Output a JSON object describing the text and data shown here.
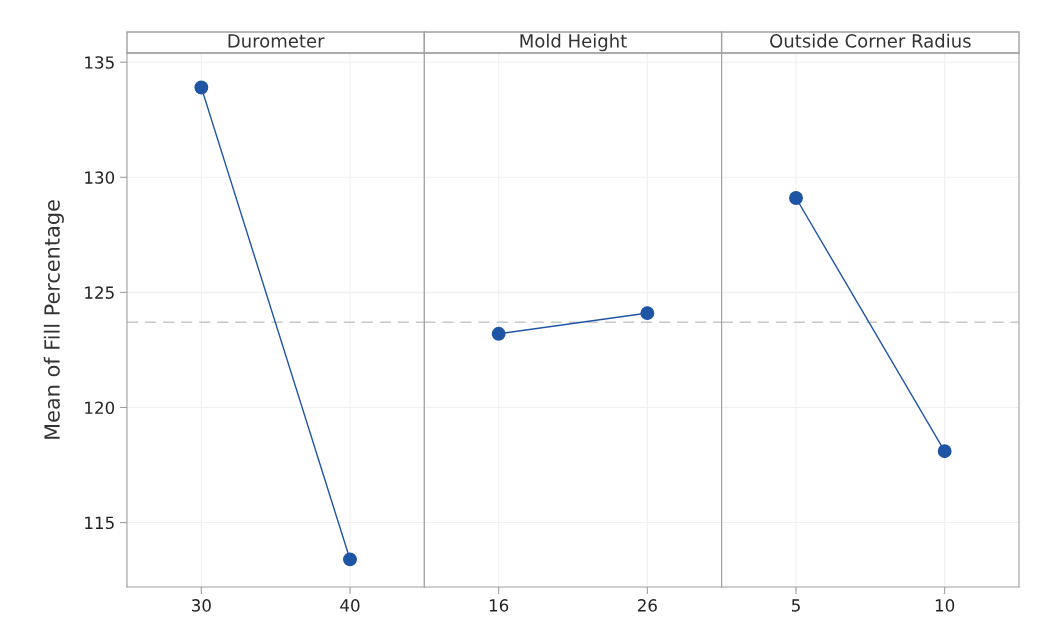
{
  "chart_data": [
    {
      "type": "line",
      "title": "Durometer",
      "ylabel": "Mean of Fill Percentage",
      "categories": [
        "30",
        "40"
      ],
      "series": [
        {
          "color": "#1f55a5",
          "values": [
            133.9,
            113.4
          ]
        }
      ],
      "ylim": [
        112.2,
        135.4
      ],
      "yticks": [
        115,
        120,
        125,
        130,
        135
      ],
      "grid": true,
      "marker": "circle",
      "line_style": "solid",
      "ref_lines": [
        {
          "axis": "y",
          "value": 123.7,
          "color": "#c8c8c8",
          "line_style": "dashed"
        }
      ]
    },
    {
      "type": "line",
      "title": "Mold Height",
      "categories": [
        "16",
        "26"
      ],
      "series": [
        {
          "color": "#1f55a5",
          "values": [
            123.2,
            124.1
          ]
        }
      ],
      "ylim": [
        112.2,
        135.4
      ],
      "yticks": [
        115,
        120,
        125,
        130,
        135
      ],
      "tick_labels": "x",
      "grid": true,
      "marker": "circle",
      "line_style": "solid",
      "ref_lines": [
        {
          "axis": "y",
          "value": 123.7,
          "color": "#c8c8c8",
          "line_style": "dashed"
        }
      ]
    },
    {
      "type": "line",
      "title": "Outside Corner Radius",
      "categories": [
        "5",
        "10"
      ],
      "series": [
        {
          "color": "#1f55a5",
          "values": [
            129.1,
            118.1
          ]
        }
      ],
      "ylim": [
        112.2,
        135.4
      ],
      "yticks": [
        115,
        120,
        125,
        130,
        135
      ],
      "tick_labels": "x",
      "grid": true,
      "marker": "circle",
      "line_style": "solid",
      "ref_lines": [
        {
          "axis": "y",
          "value": 123.7,
          "color": "#c8c8c8",
          "line_style": "dashed"
        }
      ]
    }
  ]
}
